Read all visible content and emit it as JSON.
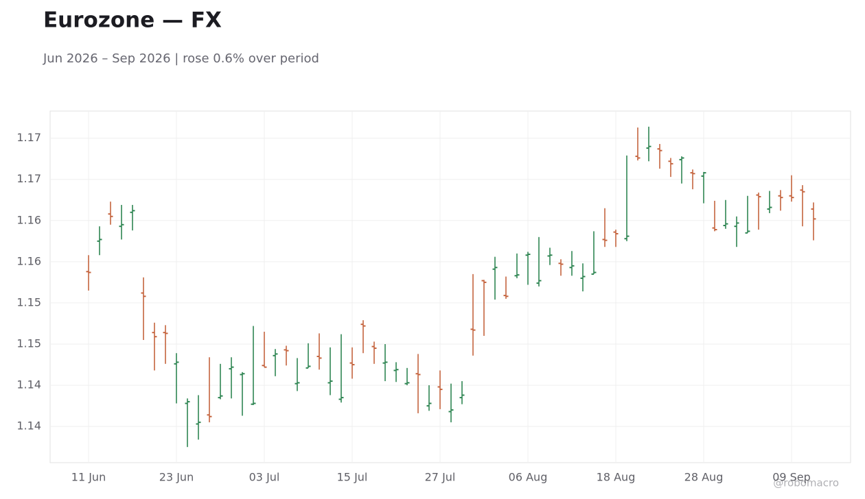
{
  "chart_data": {
    "type": "ohlc",
    "title": "Eurozone — FX",
    "subtitle": "Jun 2026 – Sep 2026 | rose 0.6% over period",
    "watermark": "@robomacro",
    "up_color": "#2e8552",
    "down_color": "#c5643e",
    "grid": true,
    "categories": [
      "11 Jun",
      null,
      null,
      null,
      null,
      null,
      null,
      null,
      "23 Jun",
      null,
      null,
      null,
      null,
      null,
      null,
      null,
      "03 Jul",
      null,
      null,
      null,
      null,
      null,
      null,
      null,
      "15 Jul",
      null,
      null,
      null,
      null,
      null,
      null,
      null,
      "27 Jul",
      null,
      null,
      null,
      null,
      null,
      null,
      null,
      "06 Aug",
      null,
      null,
      null,
      null,
      null,
      null,
      null,
      "18 Aug",
      null,
      null,
      null,
      null,
      null,
      null,
      null,
      "28 Aug",
      null,
      null,
      null,
      null,
      null,
      null,
      null,
      "09 Sep",
      null,
      null
    ],
    "open": [
      1.1538,
      1.1575,
      1.1608,
      1.1593,
      1.161,
      1.1512,
      1.1464,
      1.1464,
      1.1426,
      1.1378,
      1.1353,
      1.1364,
      1.1385,
      1.142,
      1.1413,
      1.1377,
      1.1424,
      1.1436,
      1.1443,
      1.1402,
      1.1421,
      1.1435,
      1.1403,
      1.1383,
      1.1427,
      1.1474,
      1.1447,
      1.1427,
      1.1418,
      1.1402,
      1.1414,
      1.1375,
      1.1398,
      1.1368,
      1.1385,
      1.1468,
      1.1527,
      1.1541,
      1.1509,
      1.1533,
      1.1558,
      1.1524,
      1.1557,
      1.1548,
      1.1543,
      1.153,
      1.1535,
      1.1577,
      1.1586,
      1.1578,
      1.1678,
      1.1688,
      1.1687,
      1.1672,
      1.1674,
      1.1658,
      1.1654,
      1.1591,
      1.1594,
      1.1593,
      1.1585,
      1.1631,
      1.1614,
      1.163,
      1.163,
      1.1637,
      1.1614
    ],
    "high": [
      1.1558,
      1.1593,
      1.1623,
      1.1619,
      1.1619,
      1.1531,
      1.1476,
      1.1473,
      1.1439,
      1.1384,
      1.1388,
      1.1434,
      1.1426,
      1.1434,
      1.1416,
      1.1472,
      1.1465,
      1.1444,
      1.1448,
      1.1433,
      1.1451,
      1.1463,
      1.1446,
      1.1462,
      1.1446,
      1.1479,
      1.1453,
      1.145,
      1.1428,
      1.1421,
      1.1438,
      1.14,
      1.1418,
      1.1402,
      1.1405,
      1.1535,
      1.1528,
      1.1556,
      1.1532,
      1.156,
      1.1562,
      1.158,
      1.1567,
      1.1553,
      1.1563,
      1.1548,
      1.1587,
      1.1615,
      1.1589,
      1.1679,
      1.1713,
      1.1714,
      1.1693,
      1.1676,
      1.1678,
      1.1662,
      1.1659,
      1.1624,
      1.1625,
      1.1605,
      1.163,
      1.1634,
      1.1636,
      1.1637,
      1.1655,
      1.1643,
      1.1622
    ],
    "low": [
      1.1515,
      1.1558,
      1.1595,
      1.1577,
      1.1588,
      1.1455,
      1.1418,
      1.1426,
      1.1378,
      1.1325,
      1.1334,
      1.1355,
      1.1383,
      1.1384,
      1.1363,
      1.1376,
      1.1422,
      1.1411,
      1.1424,
      1.1393,
      1.1421,
      1.1419,
      1.1388,
      1.1379,
      1.1408,
      1.1439,
      1.1426,
      1.1405,
      1.1404,
      1.14,
      1.1366,
      1.1369,
      1.1371,
      1.1355,
      1.1377,
      1.1436,
      1.146,
      1.1504,
      1.1505,
      1.153,
      1.1522,
      1.152,
      1.1546,
      1.1533,
      1.1533,
      1.1514,
      1.1535,
      1.1568,
      1.1568,
      1.1575,
      1.1673,
      1.1672,
      1.1663,
      1.1653,
      1.1645,
      1.1638,
      1.1621,
      1.1587,
      1.159,
      1.1568,
      1.1585,
      1.1589,
      1.1609,
      1.1612,
      1.1623,
      1.1593,
      1.1576
    ],
    "close": [
      1.1537,
      1.1577,
      1.1605,
      1.1595,
      1.1612,
      1.1508,
      1.1459,
      1.1463,
      1.1428,
      1.138,
      1.1355,
      1.1362,
      1.1387,
      1.1422,
      1.1414,
      1.1378,
      1.1422,
      1.1438,
      1.1442,
      1.1403,
      1.1423,
      1.1433,
      1.1405,
      1.1385,
      1.1425,
      1.1472,
      1.1445,
      1.1428,
      1.1419,
      1.1403,
      1.1413,
      1.1378,
      1.1395,
      1.137,
      1.1388,
      1.1467,
      1.1525,
      1.1543,
      1.1508,
      1.1534,
      1.1559,
      1.1527,
      1.1558,
      1.1547,
      1.1545,
      1.1532,
      1.1537,
      1.1576,
      1.1584,
      1.1581,
      1.1676,
      1.169,
      1.1685,
      1.1669,
      1.1676,
      1.1657,
      1.1658,
      1.1589,
      1.1596,
      1.1597,
      1.1587,
      1.1629,
      1.1616,
      1.1628,
      1.1628,
      1.1635,
      1.1602
    ],
    "ylim": [
      1.1306,
      1.1733
    ],
    "yticks": [
      {
        "value": 1.135,
        "label": "1.14"
      },
      1.14,
      {
        "value": 1.145,
        "label": "1.15"
      },
      1.15,
      {
        "value": 1.155,
        "label": "1.16"
      },
      1.16,
      {
        "value": 1.165,
        "label": "1.17"
      },
      1.17
    ]
  }
}
